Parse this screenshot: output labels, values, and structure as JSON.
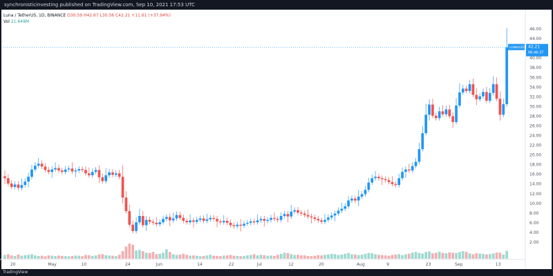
{
  "header": {
    "publisher_line": "synchronisticinvesting published on TradingView.com, Sep 10, 2021 17:53 UTC"
  },
  "legend": {
    "symbol_line": "Luna / TetherUS, 1D, BINANCE",
    "ohlc_line": "O30.59 H42.67 L30.56 C42.21 +11.61 (+37.94%)",
    "volume_label": "Vol",
    "volume_value": "21.649M"
  },
  "price_tag": {
    "symbol": "LUNAUSDT",
    "price": "42.21",
    "countdown": "06:46:37"
  },
  "footer": {
    "brand": "TradingView"
  },
  "colors": {
    "up": "#26a69a",
    "down": "#ef5350",
    "up_candle": "#2196f3",
    "vol_up": "#9ed9d0",
    "vol_down": "#f3aeb0"
  },
  "chart_data": {
    "type": "candlestick",
    "title": "Luna / TetherUS, 1D, BINANCE",
    "ylim": [
      0,
      48
    ],
    "y_ticks": [
      "2.00",
      "4.00",
      "6.00",
      "8.00",
      "10.00",
      "12.00",
      "14.00",
      "16.00",
      "18.00",
      "20.00",
      "22.00",
      "24.00",
      "26.00",
      "28.00",
      "30.00",
      "32.00",
      "34.00",
      "36.00",
      "38.00",
      "40.00",
      "42.00",
      "44.00",
      "46.00"
    ],
    "x_ticks": [
      "20",
      "May",
      "10",
      "24",
      "Jun",
      "14",
      "22",
      "Jul",
      "12",
      "20",
      "Aug",
      "9",
      "23",
      "Sep",
      "13"
    ],
    "grid": false,
    "closes": [
      15.2,
      14.1,
      13.4,
      13.9,
      13.2,
      13.8,
      14.5,
      15.5,
      17.0,
      17.8,
      18.2,
      17.6,
      16.9,
      16.5,
      17.0,
      17.3,
      16.8,
      16.5,
      17.0,
      17.2,
      16.6,
      16.8,
      17.1,
      16.9,
      16.2,
      15.8,
      16.5,
      16.9,
      15.4,
      14.6,
      15.8,
      16.4,
      15.9,
      16.2,
      15.5,
      11.2,
      8.4,
      5.6,
      4.3,
      6.1,
      7.4,
      5.5,
      6.6,
      6.2,
      6.0,
      5.7,
      6.1,
      6.8,
      7.2,
      6.5,
      6.9,
      7.6,
      7.0,
      6.4,
      6.1,
      6.5,
      6.2,
      6.6,
      6.9,
      6.4,
      6.7,
      7.0,
      6.8,
      6.3,
      6.1,
      6.4,
      6.0,
      5.5,
      5.3,
      5.6,
      5.4,
      5.8,
      6.0,
      6.3,
      6.1,
      6.5,
      6.8,
      6.4,
      6.6,
      7.0,
      6.8,
      6.6,
      7.4,
      7.8,
      7.3,
      8.3,
      8.6,
      8.1,
      7.9,
      7.6,
      7.3,
      7.1,
      6.8,
      6.5,
      6.2,
      6.6,
      7.1,
      7.5,
      7.9,
      8.5,
      8.9,
      9.4,
      10.6,
      11.0,
      10.6,
      11.4,
      11.9,
      12.8,
      14.3,
      15.2,
      15.5,
      15.2,
      15.0,
      14.8,
      14.4,
      14.0,
      13.8,
      15.2,
      16.5,
      17.0,
      16.8,
      17.7,
      18.6,
      21.2,
      24.5,
      28.3,
      30.4,
      28.1,
      27.6,
      29.0,
      28.4,
      29.4,
      28.0,
      26.8,
      30.2,
      32.9,
      33.7,
      33.2,
      34.6,
      32.4,
      31.5,
      32.1,
      33.0,
      31.2,
      32.8,
      34.6,
      31.6,
      28.3,
      30.5,
      42.21
    ],
    "volumes_rel": [
      0.25,
      0.3,
      0.22,
      0.18,
      0.28,
      0.2,
      0.24,
      0.26,
      0.3,
      0.22,
      0.18,
      0.2,
      0.16,
      0.22,
      0.2,
      0.18,
      0.21,
      0.19,
      0.17,
      0.16,
      0.18,
      0.21,
      0.2,
      0.17,
      0.25,
      0.23,
      0.19,
      0.22,
      0.29,
      0.3,
      0.24,
      0.21,
      0.2,
      0.18,
      0.26,
      0.5,
      0.8,
      1.0,
      0.92,
      0.55,
      0.58,
      0.5,
      0.4,
      0.38,
      0.45,
      0.3,
      0.33,
      0.4,
      0.62,
      0.45,
      0.3,
      0.25,
      0.28,
      0.33,
      0.26,
      0.2,
      0.22,
      0.2,
      0.17,
      0.18,
      0.22,
      0.26,
      0.2,
      0.19,
      0.18,
      0.21,
      0.22,
      0.25,
      0.2,
      0.18,
      0.17,
      0.19,
      0.22,
      0.25,
      0.3,
      0.22,
      0.26,
      0.24,
      0.2,
      0.21,
      0.19,
      0.26,
      0.32,
      0.4,
      0.38,
      0.3,
      0.25,
      0.26,
      0.22,
      0.22,
      0.18,
      0.17,
      0.2,
      0.24,
      0.22,
      0.26,
      0.28,
      0.32,
      0.3,
      0.25,
      0.28,
      0.33,
      0.38,
      0.3,
      0.28,
      0.24,
      0.27,
      0.32,
      0.38,
      0.36,
      0.3,
      0.26,
      0.24,
      0.22,
      0.2,
      0.25,
      0.28,
      0.3,
      0.24,
      0.3,
      0.33,
      0.4,
      0.45,
      0.38,
      0.34,
      0.44,
      0.48,
      0.36,
      0.4,
      0.46,
      0.39,
      0.36,
      0.42,
      0.4,
      0.38,
      0.44,
      0.5,
      0.46,
      0.35,
      0.3,
      0.36,
      0.34,
      0.32,
      0.29,
      0.31,
      0.35,
      0.4,
      0.4,
      0.28,
      0.52
    ]
  }
}
